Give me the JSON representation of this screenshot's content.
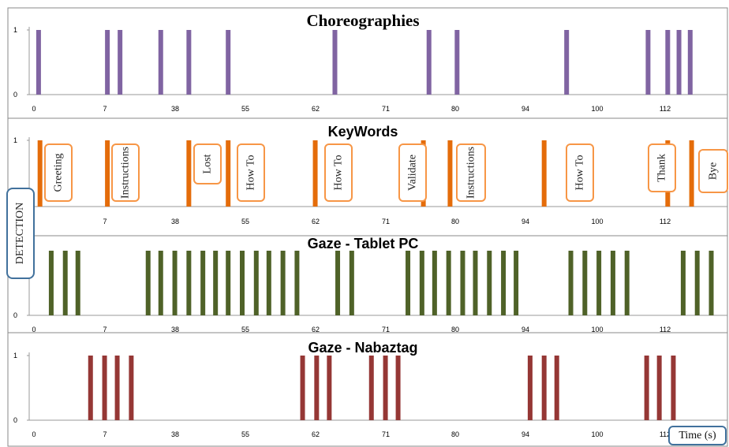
{
  "chart_data": [
    {
      "type": "bar",
      "title": "Choreographies",
      "color": "#8064a2",
      "yticks": [
        1,
        0
      ],
      "xtick_labels": [
        "0",
        "7",
        "38",
        "55",
        "62",
        "71",
        "80",
        "94",
        "100",
        "112"
      ],
      "events": [
        0.5,
        5.4,
        6.3,
        9.2,
        11.2,
        14.0,
        21.6,
        28.3,
        30.3,
        38.1,
        43.9,
        45.3,
        46.1,
        46.9
      ]
    },
    {
      "type": "bar",
      "title": "KeyWords",
      "color": "#e46c0a",
      "yticks": [
        1
      ],
      "xtick_labels": [
        "7",
        "38",
        "55",
        "62",
        "71",
        "80",
        "94",
        "100",
        "112"
      ],
      "events": [
        0.6,
        5.4,
        11.2,
        14.0,
        20.2,
        27.9,
        29.8,
        36.5,
        45.3,
        47.0
      ],
      "keywords": [
        "Greeting",
        "Instructions",
        "Lost",
        "How To",
        "How To",
        "Validate",
        "Instructions",
        "How To",
        "Thank",
        "Bye"
      ]
    },
    {
      "type": "bar",
      "title": "Gaze - Tablet PC",
      "color": "#4f6228",
      "yticks": [
        0
      ],
      "xtick_labels": [
        "0",
        "7",
        "38",
        "55",
        "62",
        "71",
        "80",
        "94",
        "100",
        "112"
      ],
      "events": [
        1.4,
        2.4,
        3.3,
        8.3,
        9.2,
        10.2,
        11.2,
        12.2,
        13.1,
        14.0,
        15.0,
        16.0,
        16.9,
        17.9,
        18.9,
        21.8,
        22.8,
        26.8,
        27.8,
        28.7,
        29.7,
        30.7,
        31.6,
        32.6,
        33.6,
        34.5,
        38.4,
        39.4,
        40.4,
        41.4,
        42.4,
        46.4,
        47.4,
        48.4
      ]
    },
    {
      "type": "bar",
      "title": "Gaze - Nabaztag",
      "color": "#953735",
      "yticks": [
        1,
        0
      ],
      "xtick_labels": [
        "0",
        "7",
        "38",
        "55",
        "62",
        "71",
        "80",
        "94",
        "100",
        "112"
      ],
      "events": [
        4.2,
        5.2,
        6.1,
        7.1,
        19.3,
        20.3,
        21.2,
        24.2,
        25.2,
        26.1,
        35.5,
        36.5,
        37.4,
        43.8,
        44.7,
        45.7
      ]
    }
  ],
  "detection_label": "DETECTION",
  "time_label": "Time (s)"
}
